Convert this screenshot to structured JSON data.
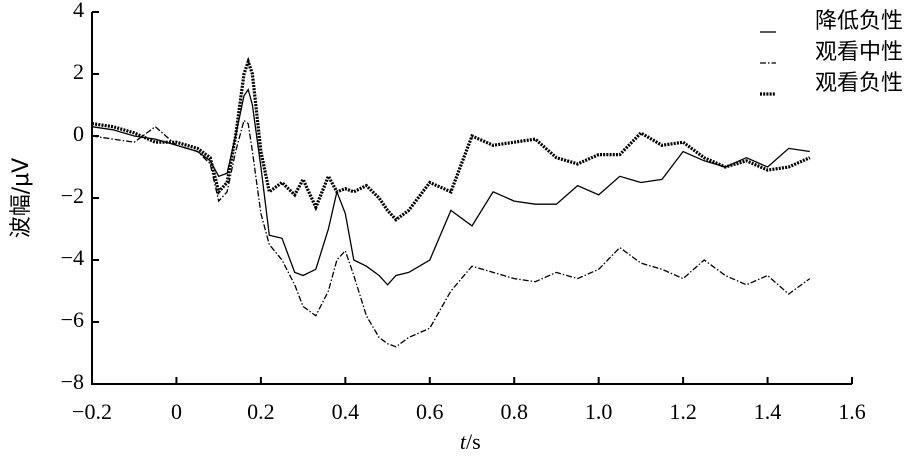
{
  "chart_data": {
    "type": "line",
    "ylabel": "波幅/μV",
    "xlabel_italic": "t",
    "xlabel_rest": "/s",
    "x": [
      -0.2,
      -0.15,
      -0.1,
      -0.05,
      0,
      0.05,
      0.08,
      0.1,
      0.12,
      0.14,
      0.16,
      0.17,
      0.18,
      0.2,
      0.22,
      0.25,
      0.28,
      0.3,
      0.33,
      0.36,
      0.38,
      0.4,
      0.42,
      0.45,
      0.48,
      0.5,
      0.52,
      0.55,
      0.6,
      0.65,
      0.7,
      0.75,
      0.8,
      0.85,
      0.9,
      0.95,
      1.0,
      1.05,
      1.1,
      1.15,
      1.2,
      1.25,
      1.3,
      1.35,
      1.4,
      1.45,
      1.5
    ],
    "series": [
      {
        "name": "降低负性",
        "color": "#000000",
        "style": "solid",
        "values": [
          0.3,
          0.2,
          0,
          -0.1,
          -0.3,
          -0.5,
          -0.8,
          -1.3,
          -1.2,
          0,
          1.3,
          1.5,
          1.0,
          -1.0,
          -3.2,
          -3.3,
          -4.4,
          -4.5,
          -4.3,
          -3.0,
          -1.8,
          -2.5,
          -4.0,
          -4.2,
          -4.5,
          -4.8,
          -4.5,
          -4.4,
          -4.0,
          -2.4,
          -2.9,
          -1.8,
          -2.1,
          -2.2,
          -2.2,
          -1.6,
          -1.9,
          -1.3,
          -1.5,
          -1.4,
          -0.5,
          -0.8,
          -1.0,
          -0.7,
          -1.0,
          -0.4,
          -0.5
        ]
      },
      {
        "name": "观看中性",
        "color": "#000000",
        "style": "dashdot",
        "values": [
          0,
          -0.1,
          -0.2,
          0.3,
          -0.3,
          -0.5,
          -0.9,
          -2.1,
          -1.8,
          -0.5,
          0.5,
          0.4,
          -0.5,
          -2.5,
          -3.5,
          -4.0,
          -4.8,
          -5.5,
          -5.8,
          -5.0,
          -4.0,
          -3.7,
          -4.5,
          -5.8,
          -6.5,
          -6.7,
          -6.8,
          -6.5,
          -6.2,
          -5.0,
          -4.2,
          -4.4,
          -4.6,
          -4.7,
          -4.4,
          -4.6,
          -4.3,
          -3.6,
          -4.1,
          -4.3,
          -4.6,
          -4.0,
          -4.5,
          -4.8,
          -4.5,
          -5.1,
          -4.6
        ]
      },
      {
        "name": "观看负性",
        "color": "#000000",
        "style": "dotted",
        "values": [
          0.4,
          0.3,
          0.1,
          -0.2,
          -0.2,
          -0.4,
          -0.7,
          -1.8,
          -1.5,
          0,
          2.0,
          2.4,
          2.0,
          -0.5,
          -1.8,
          -1.5,
          -1.9,
          -1.4,
          -2.3,
          -1.3,
          -1.8,
          -1.7,
          -1.8,
          -1.6,
          -2.0,
          -2.4,
          -2.7,
          -2.4,
          -1.5,
          -1.8,
          0,
          -0.3,
          -0.2,
          -0.1,
          -0.7,
          -0.9,
          -0.6,
          -0.6,
          0.1,
          -0.3,
          -0.2,
          -0.7,
          -1.0,
          -0.8,
          -1.1,
          -1.0,
          -0.7
        ]
      }
    ],
    "xlim": [
      -0.2,
      1.6
    ],
    "xticks": [
      {
        "value": -0.2,
        "label": "−0.2"
      },
      0,
      0.2,
      0.4,
      0.6,
      0.8,
      {
        "value": 1,
        "label": "1.0"
      },
      1.2,
      1.4,
      1.6
    ],
    "ylim": [
      -8,
      4
    ],
    "yticks": [
      {
        "value": -8,
        "label": "−8"
      },
      {
        "value": -6,
        "label": "−6"
      },
      {
        "value": -4,
        "label": "−4"
      },
      {
        "value": -2,
        "label": "−2"
      },
      0,
      2,
      4
    ],
    "grid": false,
    "legend": "top-right"
  }
}
